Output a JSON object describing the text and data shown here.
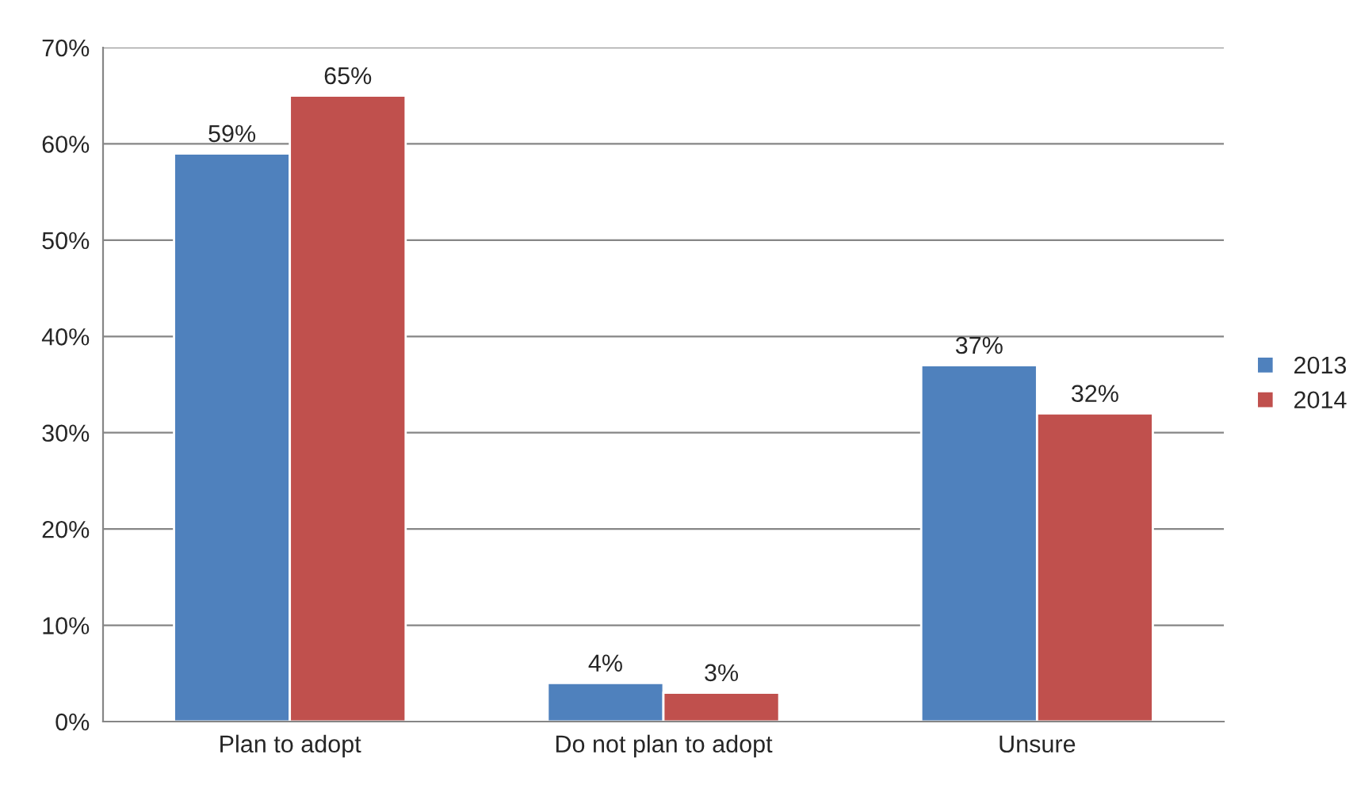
{
  "chart_data": {
    "type": "bar",
    "categories": [
      "Plan to adopt",
      "Do not plan to adopt",
      "Unsure"
    ],
    "series": [
      {
        "name": "2013",
        "color": "#4f81bd",
        "values": [
          59,
          4,
          37
        ],
        "value_labels": [
          "59%",
          "4%",
          "37%"
        ]
      },
      {
        "name": "2014",
        "color": "#c0504d",
        "values": [
          65,
          3,
          32
        ],
        "value_labels": [
          "65%",
          "3%",
          "32%"
        ]
      }
    ],
    "ylim": [
      0,
      70
    ],
    "yticks": [
      {
        "value": 0,
        "label": "0%"
      },
      {
        "value": 10,
        "label": "10%"
      },
      {
        "value": 20,
        "label": "20%"
      },
      {
        "value": 30,
        "label": "30%"
      },
      {
        "value": 40,
        "label": "40%"
      },
      {
        "value": 50,
        "label": "50%"
      },
      {
        "value": 60,
        "label": "60%"
      },
      {
        "value": 70,
        "label": "70%"
      }
    ],
    "grid": "y",
    "legend": "right"
  }
}
